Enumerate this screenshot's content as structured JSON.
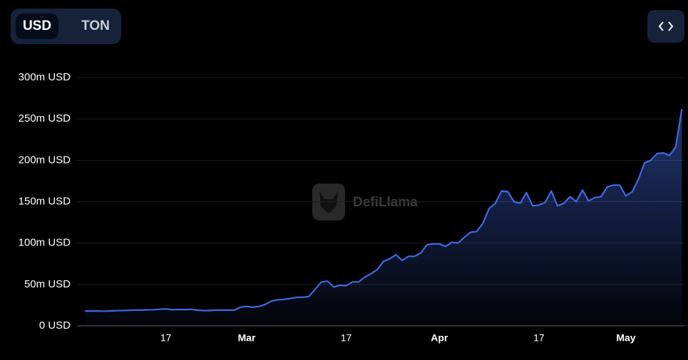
{
  "toggle": {
    "options": [
      "USD",
      "TON"
    ],
    "selected": 0
  },
  "watermark": "DefiLlama",
  "chart_data": {
    "type": "area",
    "color": "#4169e1",
    "grid": true,
    "categories": [
      null,
      null,
      null,
      null,
      null,
      null,
      null,
      null,
      null,
      null,
      null,
      null,
      null,
      "17",
      null,
      null,
      null,
      null,
      null,
      null,
      null,
      null,
      null,
      null,
      null,
      null,
      "Mar",
      null,
      null,
      null,
      null,
      null,
      null,
      null,
      null,
      null,
      null,
      null,
      null,
      null,
      null,
      null,
      "17",
      null,
      null,
      null,
      null,
      null,
      null,
      null,
      null,
      null,
      null,
      null,
      null,
      null,
      null,
      "Apr",
      null,
      null,
      null,
      null,
      null,
      null,
      null,
      null,
      null,
      null,
      null,
      null,
      null,
      null,
      null,
      "17",
      null,
      null,
      null,
      null,
      null,
      null,
      null,
      null,
      null,
      null,
      null,
      null,
      null,
      "May",
      null,
      null,
      null,
      null,
      null,
      null,
      null,
      null,
      null
    ],
    "values": [
      18,
      18,
      18,
      17.8,
      18,
      18.3,
      18.5,
      18.7,
      19,
      19,
      19.3,
      19.5,
      20,
      20.5,
      19.5,
      19.8,
      19.7,
      19.9,
      19,
      18.5,
      18.5,
      19,
      19,
      19,
      19,
      22.5,
      23.5,
      22.5,
      23.5,
      26,
      30,
      31.5,
      32,
      33,
      34.5,
      34.5,
      35.5,
      44,
      53,
      54,
      47,
      49,
      48.5,
      53,
      53,
      59,
      63,
      68,
      78,
      81,
      86,
      79,
      84,
      84,
      88,
      98,
      99,
      99,
      96,
      101,
      100,
      107,
      113,
      114,
      124,
      142,
      148,
      163,
      162,
      150,
      148,
      161,
      145,
      146,
      149,
      163,
      145,
      148,
      156,
      150,
      164,
      151,
      155,
      156,
      168,
      170,
      170,
      157,
      162,
      177,
      197,
      200,
      208,
      209,
      206,
      216,
      262
    ],
    "ylim": [
      0,
      300
    ],
    "yticks": [
      {
        "value": 0,
        "label": "0 USD"
      },
      {
        "value": 50,
        "label": "50m USD"
      },
      {
        "value": 100,
        "label": "100m USD"
      },
      {
        "value": 150,
        "label": "150m USD"
      },
      {
        "value": 200,
        "label": "200m USD"
      },
      {
        "value": 250,
        "label": "250m USD"
      },
      {
        "value": 300,
        "label": "300m USD"
      }
    ]
  }
}
